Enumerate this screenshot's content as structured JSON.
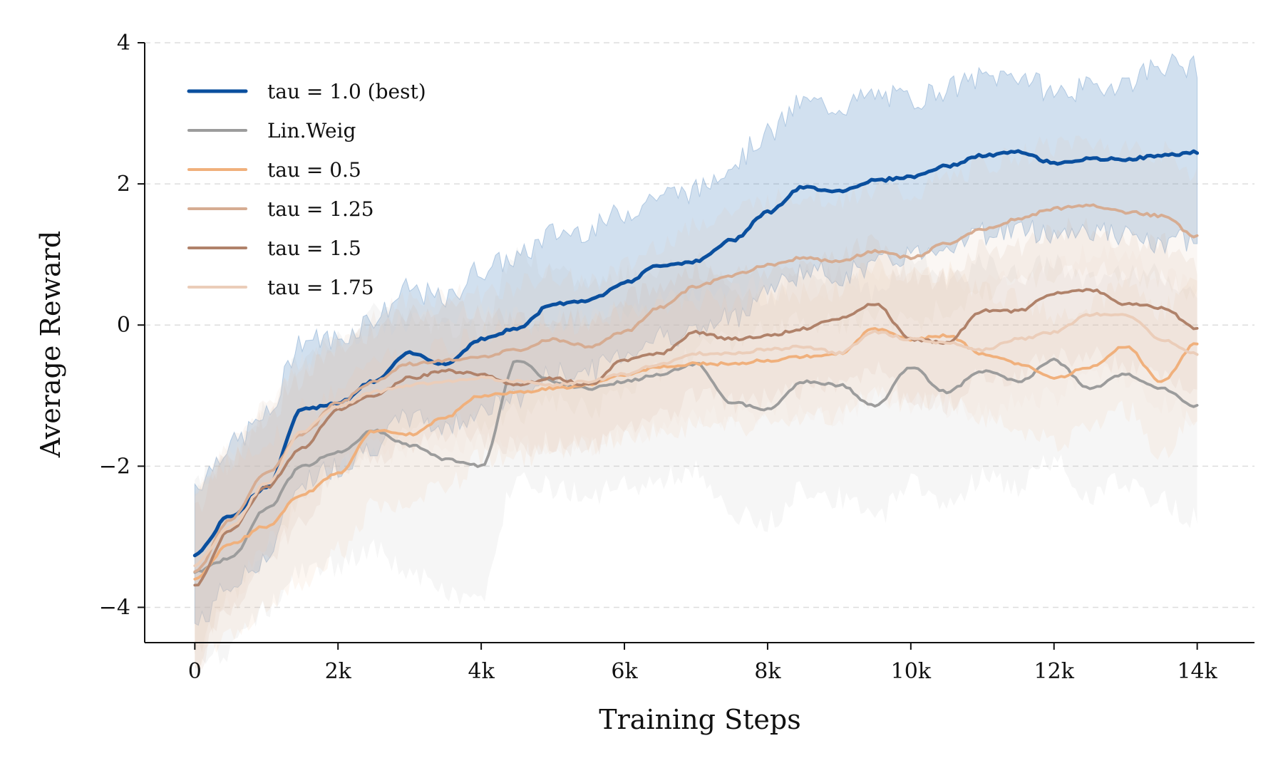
{
  "chart_data": {
    "type": "line",
    "title": "",
    "xlabel": "Training Steps",
    "ylabel": "Average Reward",
    "xlim": [
      -700,
      14800
    ],
    "ylim": [
      -4.5,
      4.0
    ],
    "xticks": [
      0,
      2000,
      4000,
      6000,
      8000,
      10000,
      12000,
      14000
    ],
    "xtick_labels": [
      "0",
      "2k",
      "4k",
      "6k",
      "8k",
      "10k",
      "12k",
      "14k"
    ],
    "yticks": [
      -4,
      -2,
      0,
      2,
      4
    ],
    "ytick_labels": [
      "−4",
      "−2",
      "0",
      "2",
      "4"
    ],
    "grid": "horizontal dashed",
    "legend_position": "top-left",
    "x": [
      0,
      500,
      1000,
      1500,
      2000,
      2500,
      3000,
      3500,
      4000,
      4500,
      5000,
      5500,
      6000,
      6500,
      7000,
      7500,
      8000,
      8500,
      9000,
      9500,
      10000,
      10500,
      11000,
      11500,
      12000,
      12500,
      13000,
      13500,
      14000
    ],
    "series": [
      {
        "name": "tau = 1.0 (best)",
        "color": "#0a4f9e",
        "band_color": "#4f86c0",
        "values": [
          -3.25,
          -2.7,
          -2.3,
          -1.2,
          -1.1,
          -0.8,
          -0.4,
          -0.55,
          -0.2,
          -0.05,
          0.3,
          0.35,
          0.6,
          0.85,
          0.9,
          1.2,
          1.6,
          1.95,
          1.9,
          2.05,
          2.1,
          2.25,
          2.4,
          2.45,
          2.3,
          2.35,
          2.35,
          2.4,
          2.45
        ],
        "band": [
          1.0,
          1.0,
          1.0,
          1.0,
          0.9,
          0.9,
          0.9,
          0.9,
          1.0,
          1.0,
          1.0,
          1.0,
          1.0,
          1.0,
          1.0,
          1.1,
          1.1,
          1.2,
          1.2,
          1.2,
          1.1,
          1.1,
          1.1,
          1.1,
          1.0,
          1.0,
          1.1,
          1.3,
          1.2
        ]
      },
      {
        "name": "Lin.Weig",
        "color": "#9c9c9c",
        "band_color": "#bdbdbd",
        "values": [
          -3.5,
          -3.3,
          -2.6,
          -2.0,
          -1.8,
          -1.5,
          -1.7,
          -1.9,
          -2.0,
          -0.5,
          -0.8,
          -0.9,
          -0.8,
          -0.7,
          -0.55,
          -1.1,
          -1.2,
          -0.8,
          -0.85,
          -1.15,
          -0.6,
          -0.95,
          -0.65,
          -0.8,
          -0.5,
          -0.9,
          -0.7,
          -0.9,
          -1.15
        ],
        "band": [
          1.3,
          1.3,
          1.4,
          1.5,
          1.6,
          1.7,
          1.8,
          1.9,
          1.9,
          1.6,
          1.5,
          1.5,
          1.5,
          1.5,
          1.5,
          1.6,
          1.6,
          1.5,
          1.6,
          1.6,
          1.6,
          1.6,
          1.5,
          1.5,
          1.4,
          1.5,
          1.5,
          1.6,
          1.6
        ]
      },
      {
        "name": "tau = 0.5",
        "color": "#f0b07c",
        "band_color": "#f2c9a4",
        "values": [
          -3.6,
          -3.1,
          -2.85,
          -2.4,
          -2.1,
          -1.5,
          -1.55,
          -1.3,
          -1.0,
          -0.95,
          -0.9,
          -0.85,
          -0.7,
          -0.6,
          -0.55,
          -0.55,
          -0.5,
          -0.45,
          -0.4,
          -0.05,
          -0.2,
          -0.15,
          -0.4,
          -0.55,
          -0.75,
          -0.6,
          -0.3,
          -0.8,
          -0.25
        ],
        "band": [
          1.2,
          1.2,
          1.2,
          1.2,
          1.1,
          1.1,
          1.0,
          1.0,
          0.9,
          0.9,
          0.9,
          0.9,
          0.9,
          0.9,
          0.9,
          0.9,
          0.9,
          0.9,
          0.9,
          0.9,
          0.9,
          0.9,
          0.9,
          0.9,
          0.9,
          0.9,
          0.9,
          1.0,
          1.0
        ]
      },
      {
        "name": "tau = 1.25",
        "color": "#d6ac92",
        "band_color": "#e4c5b0",
        "values": [
          -3.5,
          -2.75,
          -2.1,
          -1.55,
          -1.1,
          -0.8,
          -0.55,
          -0.5,
          -0.45,
          -0.35,
          -0.2,
          -0.3,
          -0.1,
          0.25,
          0.55,
          0.7,
          0.85,
          0.95,
          0.9,
          1.05,
          0.95,
          1.15,
          1.35,
          1.5,
          1.65,
          1.7,
          1.6,
          1.55,
          1.25
        ],
        "band": [
          1.1,
          1.1,
          1.0,
          1.0,
          0.9,
          0.9,
          0.9,
          0.9,
          0.9,
          0.9,
          0.9,
          0.9,
          0.9,
          0.9,
          0.9,
          0.9,
          0.9,
          0.9,
          0.9,
          0.9,
          0.9,
          0.9,
          0.9,
          0.9,
          0.9,
          0.9,
          0.9,
          0.9,
          0.9
        ]
      },
      {
        "name": "tau = 1.5",
        "color": "#b0826a",
        "band_color": "#d4b09b",
        "values": [
          -3.7,
          -2.9,
          -2.3,
          -1.75,
          -1.2,
          -1.0,
          -0.75,
          -0.65,
          -0.7,
          -0.85,
          -0.75,
          -0.85,
          -0.5,
          -0.4,
          -0.1,
          -0.2,
          -0.15,
          -0.05,
          0.1,
          0.3,
          -0.2,
          -0.25,
          0.2,
          0.2,
          0.45,
          0.5,
          0.3,
          0.25,
          -0.05
        ],
        "band": [
          1.1,
          1.1,
          1.0,
          1.0,
          0.9,
          0.9,
          0.9,
          0.9,
          0.9,
          0.9,
          0.9,
          0.9,
          0.9,
          0.9,
          0.9,
          0.9,
          0.9,
          0.9,
          0.9,
          0.9,
          0.9,
          0.9,
          0.9,
          0.9,
          0.9,
          0.9,
          0.9,
          0.9,
          0.9
        ]
      },
      {
        "name": "tau = 1.75",
        "color": "#ebcdb9",
        "band_color": "#f0dccd",
        "values": [
          -3.4,
          -2.85,
          -2.25,
          -1.5,
          -1.15,
          -0.95,
          -0.85,
          -0.8,
          -0.75,
          -0.8,
          -0.85,
          -0.8,
          -0.7,
          -0.55,
          -0.4,
          -0.4,
          -0.35,
          -0.3,
          -0.4,
          -0.1,
          -0.2,
          -0.25,
          -0.35,
          -0.2,
          -0.1,
          0.15,
          0.15,
          -0.2,
          -0.4
        ],
        "band": [
          1.1,
          1.1,
          1.0,
          1.0,
          0.9,
          0.9,
          0.9,
          0.9,
          0.9,
          0.9,
          0.9,
          0.9,
          0.9,
          0.9,
          0.9,
          0.9,
          0.9,
          0.9,
          0.9,
          0.9,
          0.9,
          0.9,
          0.9,
          0.9,
          0.9,
          0.9,
          0.9,
          0.9,
          0.9
        ]
      }
    ]
  }
}
